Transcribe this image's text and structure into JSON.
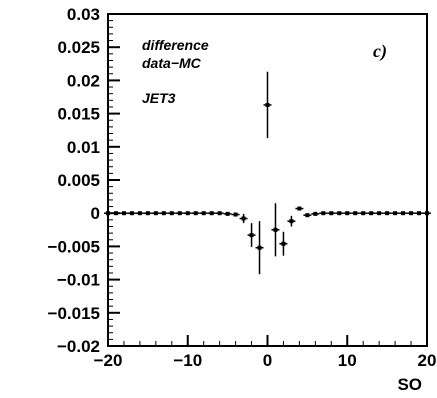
{
  "chart_data": {
    "type": "scatter",
    "title": "",
    "xlabel": "SO",
    "ylabel": "",
    "xlim": [
      -20,
      20
    ],
    "ylim": [
      -0.02,
      0.03
    ],
    "grid": false,
    "x_ticks": [
      -20,
      -10,
      0,
      10,
      20
    ],
    "x_tick_labels": [
      "−20",
      "−10",
      "0",
      "10",
      "20"
    ],
    "y_ticks": [
      -0.02,
      -0.015,
      -0.01,
      -0.005,
      0,
      0.005,
      0.01,
      0.015,
      0.02,
      0.025,
      0.03
    ],
    "y_tick_labels": [
      "−0.02",
      "−0.015",
      "−0.01",
      "−0.005",
      "0",
      "0.005",
      "0.01",
      "0.015",
      "0.02",
      "0.025",
      "0.03"
    ],
    "annotations": [
      "difference",
      "data−MC",
      "JET3"
    ],
    "panel_label": "c)",
    "series": [
      {
        "points": [
          {
            "x": -20,
            "y": 0,
            "err": 0
          },
          {
            "x": -19,
            "y": 0,
            "err": 0
          },
          {
            "x": -18,
            "y": 0,
            "err": 0
          },
          {
            "x": -17,
            "y": 0,
            "err": 0
          },
          {
            "x": -16,
            "y": 0,
            "err": 0
          },
          {
            "x": -15,
            "y": 0,
            "err": 0
          },
          {
            "x": -14,
            "y": 0,
            "err": 0
          },
          {
            "x": -13,
            "y": 0,
            "err": 0
          },
          {
            "x": -12,
            "y": 0,
            "err": 0
          },
          {
            "x": -11,
            "y": 0,
            "err": 0
          },
          {
            "x": -10,
            "y": 0,
            "err": 0
          },
          {
            "x": -9,
            "y": 0,
            "err": 0
          },
          {
            "x": -8,
            "y": 0,
            "err": 0
          },
          {
            "x": -7,
            "y": 0,
            "err": 0
          },
          {
            "x": -6,
            "y": 0,
            "err": 0
          },
          {
            "x": -5,
            "y": -0.0001,
            "err": 0
          },
          {
            "x": -4,
            "y": -0.0002,
            "err": 0.0001
          },
          {
            "x": -3,
            "y": -0.0008,
            "err": 0.0007
          },
          {
            "x": -2,
            "y": -0.0033,
            "err": 0.0018
          },
          {
            "x": -1,
            "y": -0.0052,
            "err": 0.004
          },
          {
            "x": 0,
            "y": 0.0163,
            "err": 0.005
          },
          {
            "x": 1,
            "y": -0.0025,
            "err": 0.004
          },
          {
            "x": 2,
            "y": -0.0046,
            "err": 0.0018
          },
          {
            "x": 3,
            "y": -0.0012,
            "err": 0.0008
          },
          {
            "x": 4,
            "y": 0.0007,
            "err": 0.0002
          },
          {
            "x": 5,
            "y": -0.0003,
            "err": 0.0001
          },
          {
            "x": 6,
            "y": -0.0001,
            "err": 0
          },
          {
            "x": 7,
            "y": 0,
            "err": 0
          },
          {
            "x": 8,
            "y": 0,
            "err": 0
          },
          {
            "x": 9,
            "y": 0,
            "err": 0
          },
          {
            "x": 10,
            "y": 0,
            "err": 0
          },
          {
            "x": 11,
            "y": 0,
            "err": 0
          },
          {
            "x": 12,
            "y": 0,
            "err": 0
          },
          {
            "x": 13,
            "y": 0,
            "err": 0
          },
          {
            "x": 14,
            "y": 0,
            "err": 0
          },
          {
            "x": 15,
            "y": 0,
            "err": 0
          },
          {
            "x": 16,
            "y": 0,
            "err": 0
          },
          {
            "x": 17,
            "y": 0,
            "err": 0
          },
          {
            "x": 18,
            "y": 0,
            "err": 0
          },
          {
            "x": 19,
            "y": 0,
            "err": 0
          },
          {
            "x": 20,
            "y": 0,
            "err": 0
          }
        ]
      }
    ]
  }
}
